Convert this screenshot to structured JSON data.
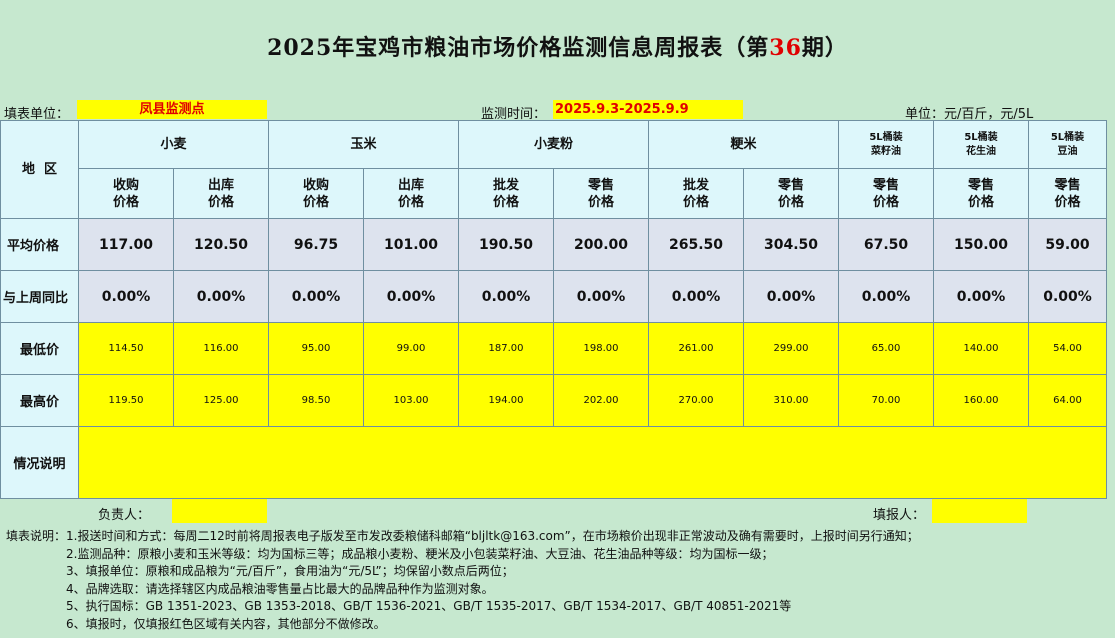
{
  "title": {
    "prefix": "2025年宝鸡市粮油市场价格监测信息周报表（第",
    "issue": "36",
    "suffix": "期）"
  },
  "info": {
    "unit_label": "填表单位：",
    "unit_value": "凤县监测点",
    "period_label": "监测时间：",
    "period_value": "2025.9.3-2025.9.9",
    "unit_price_label": "单位：元/百斤，元/5L"
  },
  "header": {
    "region": "地  区",
    "groups": [
      "小麦",
      "玉米",
      "小麦粉",
      "粳米"
    ],
    "oil_groups": [
      {
        "line1": "5L桶装",
        "line2": "菜籽油"
      },
      {
        "line1": "5L桶装",
        "line2": "花生油"
      },
      {
        "line1": "5L桶装",
        "line2": "豆油"
      }
    ],
    "sub": [
      {
        "line1": "收购",
        "line2": "价格"
      },
      {
        "line1": "出库",
        "line2": "价格"
      },
      {
        "line1": "收购",
        "line2": "价格"
      },
      {
        "line1": "出库",
        "line2": "价格"
      },
      {
        "line1": "批发",
        "line2": "价格"
      },
      {
        "line1": "零售",
        "line2": "价格"
      },
      {
        "line1": "批发",
        "line2": "价格"
      },
      {
        "line1": "零售",
        "line2": "价格"
      },
      {
        "line1": "零售",
        "line2": "价格"
      },
      {
        "line1": "零售",
        "line2": "价格"
      },
      {
        "line1": "零售",
        "line2": "价格"
      }
    ]
  },
  "rows": {
    "avg": {
      "label": "平均价格",
      "values": [
        "117.00",
        "120.50",
        "96.75",
        "101.00",
        "190.50",
        "200.00",
        "265.50",
        "304.50",
        "67.50",
        "150.00",
        "59.00"
      ]
    },
    "yoy": {
      "label": "与上周同比",
      "values": [
        "0.00%",
        "0.00%",
        "0.00%",
        "0.00%",
        "0.00%",
        "0.00%",
        "0.00%",
        "0.00%",
        "0.00%",
        "0.00%",
        "0.00%"
      ]
    },
    "min": {
      "label": "最低价",
      "values": [
        "114.50",
        "116.00",
        "95.00",
        "99.00",
        "187.00",
        "198.00",
        "261.00",
        "299.00",
        "65.00",
        "140.00",
        "54.00"
      ]
    },
    "max": {
      "label": "最高价",
      "values": [
        "119.50",
        "125.00",
        "98.50",
        "103.00",
        "194.00",
        "202.00",
        "270.00",
        "310.00",
        "70.00",
        "160.00",
        "64.00"
      ]
    },
    "note": {
      "label": "情况说明",
      "value": ""
    }
  },
  "footer": {
    "responsible_label": "负责人：",
    "reporter_label": "填报人："
  },
  "notes": [
    "填表说明：1.报送时间和方式：每周二12时前将周报表电子版发至市发改委粮储科邮箱“bljltk@163.com”，在市场粮价出现非正常波动及确有需要时，上报时间另行通知；",
    "2.监测品种：原粮小麦和玉米等级：均为国标三等；成品粮小麦粉、粳米及小包装菜籽油、大豆油、花生油品种等级：均为国标一级；",
    "3、填报单位：原粮和成品粮为“元/百斤”，食用油为“元/5L”；均保留小数点后两位；",
    "4、品牌选取：请选择辖区内成品粮油零售量占比最大的品牌品种作为监测对象。",
    "5、执行国标：GB 1351-2023、GB 1353-2018、GB/T 1536-2021、GB/T 1535-2017、GB/T 1534-2017、GB/T 40851-2021等",
    "6、填报时，仅填报红色区域有关内容，其他部分不做修改。"
  ]
}
